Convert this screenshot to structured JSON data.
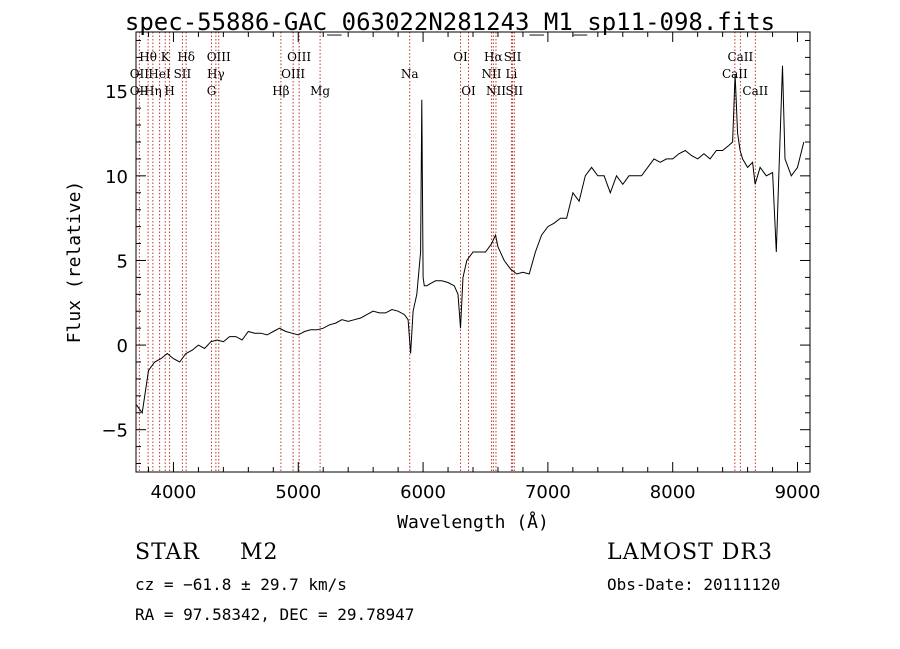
{
  "chart_data": {
    "type": "line",
    "title": "spec-55886-GAC_063022N281243_M1_sp11-098.fits",
    "xlabel": "Wavelength (Å)",
    "ylabel": "Flux (relative)",
    "xlim": [
      3700,
      9100
    ],
    "ylim": [
      -7.5,
      18.5
    ],
    "x_ticks": [
      4000,
      5000,
      6000,
      7000,
      8000,
      9000
    ],
    "y_ticks": [
      -5,
      0,
      5,
      10,
      15
    ],
    "series": [
      {
        "name": "flux",
        "x": [
          3700,
          3750,
          3800,
          3850,
          3900,
          3950,
          4000,
          4050,
          4100,
          4150,
          4200,
          4250,
          4300,
          4350,
          4400,
          4450,
          4500,
          4550,
          4600,
          4650,
          4700,
          4750,
          4800,
          4850,
          4900,
          4950,
          5000,
          5050,
          5100,
          5150,
          5200,
          5250,
          5300,
          5350,
          5400,
          5450,
          5500,
          5550,
          5600,
          5650,
          5700,
          5750,
          5800,
          5850,
          5880,
          5900,
          5920,
          5950,
          5980,
          5990,
          6000,
          6010,
          6030,
          6050,
          6100,
          6150,
          6200,
          6250,
          6280,
          6300,
          6320,
          6350,
          6400,
          6450,
          6500,
          6550,
          6580,
          6600,
          6650,
          6700,
          6750,
          6800,
          6850,
          6900,
          6950,
          7000,
          7050,
          7100,
          7150,
          7200,
          7250,
          7300,
          7350,
          7400,
          7450,
          7500,
          7550,
          7600,
          7650,
          7700,
          7750,
          7800,
          7850,
          7900,
          7950,
          8000,
          8050,
          8100,
          8150,
          8200,
          8250,
          8300,
          8350,
          8400,
          8450,
          8480,
          8500,
          8520,
          8540,
          8560,
          8600,
          8640,
          8660,
          8700,
          8750,
          8800,
          8830,
          8850,
          8880,
          8900,
          8950,
          9000,
          9050
        ],
        "y": [
          -3.5,
          -4.0,
          -1.5,
          -1.0,
          -0.8,
          -0.5,
          -0.8,
          -1.0,
          -0.5,
          -0.3,
          0.0,
          -0.2,
          0.2,
          0.3,
          0.2,
          0.5,
          0.5,
          0.3,
          0.8,
          0.7,
          0.7,
          0.6,
          0.8,
          1.0,
          0.8,
          0.7,
          0.6,
          0.8,
          0.9,
          0.9,
          1.0,
          1.2,
          1.3,
          1.5,
          1.4,
          1.5,
          1.6,
          1.8,
          2.0,
          1.9,
          1.9,
          2.1,
          2.0,
          1.8,
          1.5,
          -0.5,
          2.0,
          3.0,
          5.5,
          14.5,
          4.0,
          3.5,
          3.5,
          3.6,
          3.8,
          3.8,
          3.7,
          3.5,
          3.0,
          1.0,
          4.0,
          5.0,
          5.5,
          5.5,
          5.5,
          6.0,
          6.5,
          5.8,
          5.0,
          4.5,
          4.2,
          4.3,
          4.2,
          5.5,
          6.5,
          7.0,
          7.2,
          7.5,
          7.5,
          9.0,
          8.5,
          10.0,
          10.5,
          10.0,
          10.0,
          9.0,
          10.0,
          9.5,
          10.0,
          10.0,
          10.0,
          10.5,
          11.0,
          10.8,
          11.0,
          11.0,
          11.3,
          11.5,
          11.2,
          11.0,
          11.3,
          11.0,
          11.5,
          11.5,
          11.8,
          12.0,
          16.0,
          12.5,
          11.5,
          11.0,
          10.5,
          10.8,
          9.5,
          10.5,
          10.0,
          10.2,
          5.5,
          10.0,
          16.5,
          11.0,
          10.0,
          10.5,
          12.0
        ]
      }
    ],
    "line_markers": [
      {
        "label": "OII",
        "x": 3727,
        "row": 2
      },
      {
        "label": "Hθ",
        "x": 3797,
        "row": 1
      },
      {
        "label": "OII",
        "x": 3727,
        "row": 3
      },
      {
        "label": "HeI",
        "x": 3889,
        "row": 2
      },
      {
        "label": "Hη",
        "x": 3835,
        "row": 3
      },
      {
        "label": "K",
        "x": 3934,
        "row": 1
      },
      {
        "label": "H",
        "x": 3969,
        "row": 3
      },
      {
        "label": "Hδ",
        "x": 4102,
        "row": 1
      },
      {
        "label": "SII",
        "x": 4072,
        "row": 2
      },
      {
        "label": "OIII",
        "x": 4363,
        "row": 1
      },
      {
        "label": "Hγ",
        "x": 4340,
        "row": 2
      },
      {
        "label": "G",
        "x": 4305,
        "row": 3
      },
      {
        "label": "Hβ",
        "x": 4861,
        "row": 3
      },
      {
        "label": "OIII",
        "x": 5007,
        "row": 1
      },
      {
        "label": "OIII",
        "x": 4959,
        "row": 2
      },
      {
        "label": "Mg",
        "x": 5175,
        "row": 3
      },
      {
        "label": "Na",
        "x": 5893,
        "row": 2
      },
      {
        "label": "OI",
        "x": 6300,
        "row": 1
      },
      {
        "label": "OI",
        "x": 6364,
        "row": 3
      },
      {
        "label": "Hα",
        "x": 6563,
        "row": 1
      },
      {
        "label": "NII",
        "x": 6548,
        "row": 2
      },
      {
        "label": "SII",
        "x": 6717,
        "row": 1
      },
      {
        "label": "Li",
        "x": 6708,
        "row": 2
      },
      {
        "label": "NII",
        "x": 6584,
        "row": 3
      },
      {
        "label": "SII",
        "x": 6731,
        "row": 3
      },
      {
        "label": "CaII",
        "x": 8542,
        "row": 1
      },
      {
        "label": "CaII",
        "x": 8498,
        "row": 2
      },
      {
        "label": "CaII",
        "x": 8662,
        "row": 3
      }
    ],
    "marker_color": "#c0392b"
  },
  "info": {
    "class": "STAR",
    "subclass": "M2",
    "survey": "LAMOST DR3",
    "velocity": "cz = −61.8 ± 29.7 km/s",
    "obs_date": "Obs-Date: 20111120",
    "coords": "RA =  97.58342, DEC =  29.78947"
  }
}
